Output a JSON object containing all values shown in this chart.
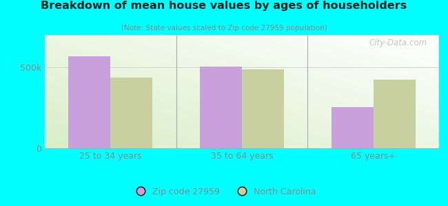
{
  "title": "Breakdown of mean house values by ages of householders",
  "subtitle": "(Note: State values scaled to Zip code 27959 population)",
  "categories": [
    "25 to 34 years",
    "35 to 64 years",
    "65 years+"
  ],
  "zip_values": [
    570000,
    505000,
    255000
  ],
  "nc_values": [
    435000,
    490000,
    425000
  ],
  "zip_color": "#c8a0dc",
  "nc_color": "#c8d0a0",
  "ylim": [
    0,
    700000
  ],
  "yticks": [
    0,
    500000
  ],
  "ytick_labels": [
    "0",
    "500k"
  ],
  "outer_bg": "#00ffff",
  "legend_zip_label": "Zip code 27959",
  "legend_nc_label": "North Carolina",
  "bar_width": 0.32,
  "watermark": "City-Data.com",
  "separator_color": "#aaaaaa",
  "tick_color": "#888888",
  "title_color": "#222222",
  "subtitle_color": "#888888",
  "watermark_color": "#bbbbbb"
}
